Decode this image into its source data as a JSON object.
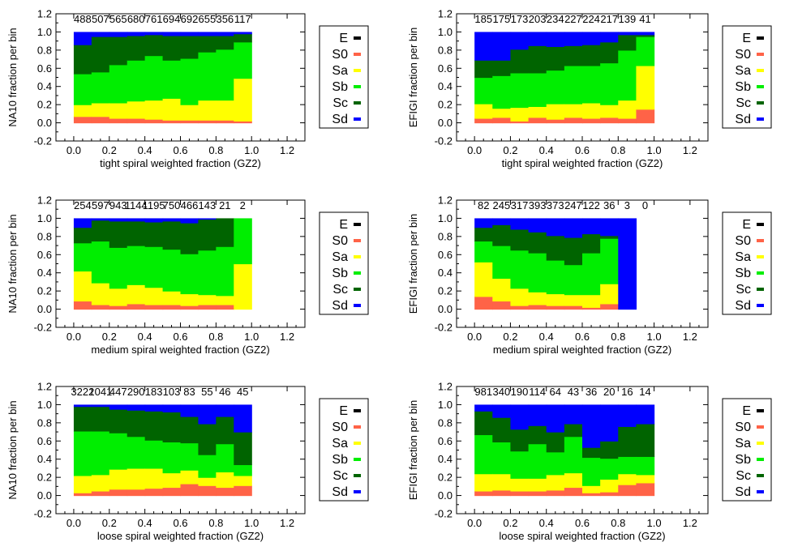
{
  "legend_labels": [
    "E",
    "S0",
    "Sa",
    "Sb",
    "Sc",
    "Sd"
  ],
  "chart_data": [
    {
      "type": "bar",
      "ylabel": "NA10 fraction per bin",
      "xlabel": "tight spiral weighted fraction (GZ2)",
      "counts": [
        "488",
        "507",
        "565",
        "680",
        "761",
        "694",
        "692",
        "655",
        "356",
        "117"
      ],
      "xlim": [
        -0.1,
        1.3
      ],
      "ylim": [
        -0.2,
        1.2
      ],
      "x_ticks": [
        "0.0",
        "0.2",
        "0.4",
        "0.6",
        "0.8",
        "1.0",
        "1.2"
      ],
      "y_ticks": [
        "-0.2",
        "0.0",
        "0.2",
        "0.4",
        "0.6",
        "0.8",
        "1.0",
        "1.2"
      ],
      "bin_edges": [
        0.0,
        0.1,
        0.2,
        0.3,
        0.4,
        0.5,
        0.6,
        0.7,
        0.8,
        0.9,
        1.0
      ],
      "series": [
        {
          "name": "E",
          "color": "#000000",
          "values": [
            0.0,
            0.0,
            0.0,
            0.0,
            0.0,
            0.0,
            0.0,
            0.0,
            0.0,
            0.0
          ]
        },
        {
          "name": "S0",
          "color": "#ff6347",
          "values": [
            0.07,
            0.07,
            0.05,
            0.05,
            0.04,
            0.03,
            0.03,
            0.03,
            0.03,
            0.02
          ]
        },
        {
          "name": "Sa",
          "color": "#ffff00",
          "values": [
            0.13,
            0.15,
            0.17,
            0.19,
            0.21,
            0.24,
            0.17,
            0.22,
            0.22,
            0.47
          ]
        },
        {
          "name": "Sb",
          "color": "#00ee00",
          "values": [
            0.34,
            0.34,
            0.42,
            0.45,
            0.49,
            0.42,
            0.51,
            0.53,
            0.56,
            0.4
          ]
        },
        {
          "name": "Sc",
          "color": "#006400",
          "values": [
            0.32,
            0.39,
            0.31,
            0.27,
            0.23,
            0.27,
            0.25,
            0.18,
            0.15,
            0.09
          ]
        },
        {
          "name": "Sd",
          "color": "#0000ff",
          "values": [
            0.14,
            0.05,
            0.05,
            0.04,
            0.03,
            0.04,
            0.04,
            0.04,
            0.04,
            0.02
          ]
        }
      ]
    },
    {
      "type": "bar",
      "ylabel": "EFIGI fraction per bin",
      "xlabel": "tight spiral weighted fraction (GZ2)",
      "counts": [
        "185",
        "175",
        "173",
        "203",
        "234",
        "227",
        "224",
        "217",
        "139",
        "41"
      ],
      "xlim": [
        -0.1,
        1.3
      ],
      "ylim": [
        -0.2,
        1.2
      ],
      "x_ticks": [
        "0.0",
        "0.2",
        "0.4",
        "0.6",
        "0.8",
        "1.0",
        "1.2"
      ],
      "y_ticks": [
        "-0.2",
        "0.0",
        "0.2",
        "0.4",
        "0.6",
        "0.8",
        "1.0",
        "1.2"
      ],
      "bin_edges": [
        0.0,
        0.1,
        0.2,
        0.3,
        0.4,
        0.5,
        0.6,
        0.7,
        0.8,
        0.9,
        1.0
      ],
      "series": [
        {
          "name": "E",
          "color": "#000000",
          "values": [
            0.0,
            0.0,
            0.0,
            0.0,
            0.0,
            0.0,
            0.0,
            0.0,
            0.0,
            0.0
          ]
        },
        {
          "name": "S0",
          "color": "#ff6347",
          "values": [
            0.05,
            0.06,
            0.02,
            0.06,
            0.04,
            0.06,
            0.05,
            0.06,
            0.05,
            0.15
          ]
        },
        {
          "name": "Sa",
          "color": "#ffff00",
          "values": [
            0.16,
            0.1,
            0.15,
            0.12,
            0.17,
            0.15,
            0.17,
            0.14,
            0.2,
            0.48
          ]
        },
        {
          "name": "Sb",
          "color": "#00ee00",
          "values": [
            0.29,
            0.36,
            0.38,
            0.37,
            0.37,
            0.42,
            0.41,
            0.46,
            0.55,
            0.32
          ]
        },
        {
          "name": "Sc",
          "color": "#006400",
          "values": [
            0.19,
            0.17,
            0.26,
            0.3,
            0.26,
            0.22,
            0.23,
            0.23,
            0.17,
            0.02
          ]
        },
        {
          "name": "Sd",
          "color": "#0000ff",
          "values": [
            0.31,
            0.31,
            0.19,
            0.15,
            0.16,
            0.15,
            0.14,
            0.11,
            0.03,
            0.03
          ]
        }
      ]
    },
    {
      "type": "bar",
      "ylabel": "NA10 fraction per bin",
      "xlabel": "medium spiral weighted fraction (GZ2)",
      "counts": [
        "254",
        "597",
        "943",
        "1144",
        "1195",
        "750",
        "466",
        "143",
        "21",
        "2"
      ],
      "xlim": [
        -0.1,
        1.3
      ],
      "ylim": [
        -0.2,
        1.2
      ],
      "x_ticks": [
        "0.0",
        "0.2",
        "0.4",
        "0.6",
        "0.8",
        "1.0",
        "1.2"
      ],
      "y_ticks": [
        "-0.2",
        "0.0",
        "0.2",
        "0.4",
        "0.6",
        "0.8",
        "1.0",
        "1.2"
      ],
      "bin_edges": [
        0.0,
        0.1,
        0.2,
        0.3,
        0.4,
        0.5,
        0.6,
        0.7,
        0.8,
        0.9,
        1.0
      ],
      "series": [
        {
          "name": "E",
          "color": "#000000",
          "values": [
            0.0,
            0.0,
            0.0,
            0.0,
            0.0,
            0.0,
            0.0,
            0.0,
            0.0,
            0.0
          ]
        },
        {
          "name": "S0",
          "color": "#ff6347",
          "values": [
            0.09,
            0.05,
            0.04,
            0.06,
            0.05,
            0.05,
            0.04,
            0.05,
            0.05,
            0.0
          ]
        },
        {
          "name": "Sa",
          "color": "#ffff00",
          "values": [
            0.33,
            0.24,
            0.19,
            0.21,
            0.19,
            0.15,
            0.13,
            0.11,
            0.1,
            0.5
          ]
        },
        {
          "name": "Sb",
          "color": "#00ee00",
          "values": [
            0.31,
            0.46,
            0.45,
            0.43,
            0.45,
            0.46,
            0.44,
            0.49,
            0.54,
            0.5
          ]
        },
        {
          "name": "Sc",
          "color": "#006400",
          "values": [
            0.17,
            0.23,
            0.29,
            0.27,
            0.27,
            0.31,
            0.34,
            0.34,
            0.31,
            0.0
          ]
        },
        {
          "name": "Sd",
          "color": "#0000ff",
          "values": [
            0.1,
            0.02,
            0.03,
            0.03,
            0.04,
            0.03,
            0.05,
            0.01,
            0.0,
            0.0
          ]
        }
      ]
    },
    {
      "type": "bar",
      "ylabel": "EFIGI fraction per bin",
      "xlabel": "medium spiral weighted fraction (GZ2)",
      "counts": [
        "82",
        "245",
        "317",
        "393",
        "373",
        "247",
        "122",
        "36",
        "3",
        "0"
      ],
      "xlim": [
        -0.1,
        1.3
      ],
      "ylim": [
        -0.2,
        1.2
      ],
      "x_ticks": [
        "0.0",
        "0.2",
        "0.4",
        "0.6",
        "0.8",
        "1.0",
        "1.2"
      ],
      "y_ticks": [
        "-0.2",
        "0.0",
        "0.2",
        "0.4",
        "0.6",
        "0.8",
        "1.0",
        "1.2"
      ],
      "bin_edges": [
        0.0,
        0.1,
        0.2,
        0.3,
        0.4,
        0.5,
        0.6,
        0.7,
        0.8,
        0.9,
        1.0
      ],
      "series": [
        {
          "name": "E",
          "color": "#000000",
          "values": [
            0.0,
            0.0,
            0.0,
            0.0,
            0.0,
            0.0,
            0.0,
            0.0,
            0.0,
            0.0
          ]
        },
        {
          "name": "S0",
          "color": "#ff6347",
          "values": [
            0.14,
            0.09,
            0.04,
            0.05,
            0.04,
            0.04,
            0.02,
            0.06,
            0.0,
            0.0
          ]
        },
        {
          "name": "Sa",
          "color": "#ffff00",
          "values": [
            0.38,
            0.25,
            0.19,
            0.14,
            0.13,
            0.12,
            0.14,
            0.22,
            0.0,
            0.0
          ]
        },
        {
          "name": "Sb",
          "color": "#00ee00",
          "values": [
            0.23,
            0.36,
            0.42,
            0.43,
            0.37,
            0.33,
            0.46,
            0.5,
            0.0,
            0.0
          ]
        },
        {
          "name": "Sc",
          "color": "#006400",
          "values": [
            0.15,
            0.23,
            0.23,
            0.23,
            0.27,
            0.3,
            0.21,
            0.03,
            0.0,
            0.0
          ]
        },
        {
          "name": "Sd",
          "color": "#0000ff",
          "values": [
            0.1,
            0.07,
            0.12,
            0.15,
            0.19,
            0.21,
            0.17,
            0.19,
            1.0,
            0.0
          ]
        }
      ]
    },
    {
      "type": "bar",
      "ylabel": "NA10 fraction per bin",
      "xlabel": "loose spiral weighted fraction (GZ2)",
      "counts": [
        "3222",
        "1041",
        "447",
        "290",
        "183",
        "103",
        "83",
        "55",
        "46",
        "45"
      ],
      "xlim": [
        -0.1,
        1.3
      ],
      "ylim": [
        -0.2,
        1.2
      ],
      "x_ticks": [
        "0.0",
        "0.2",
        "0.4",
        "0.6",
        "0.8",
        "1.0",
        "1.2"
      ],
      "y_ticks": [
        "-0.2",
        "0.0",
        "0.2",
        "0.4",
        "0.6",
        "0.8",
        "1.0",
        "1.2"
      ],
      "bin_edges": [
        0.0,
        0.1,
        0.2,
        0.3,
        0.4,
        0.5,
        0.6,
        0.7,
        0.8,
        0.9,
        1.0
      ],
      "series": [
        {
          "name": "E",
          "color": "#000000",
          "values": [
            0.0,
            0.0,
            0.0,
            0.0,
            0.0,
            0.0,
            0.0,
            0.0,
            0.0,
            0.0
          ]
        },
        {
          "name": "S0",
          "color": "#ff6347",
          "values": [
            0.03,
            0.05,
            0.07,
            0.07,
            0.08,
            0.09,
            0.13,
            0.11,
            0.09,
            0.11
          ]
        },
        {
          "name": "Sa",
          "color": "#ffff00",
          "values": [
            0.19,
            0.18,
            0.22,
            0.23,
            0.22,
            0.16,
            0.15,
            0.09,
            0.17,
            0.11
          ]
        },
        {
          "name": "Sb",
          "color": "#00ee00",
          "values": [
            0.49,
            0.48,
            0.4,
            0.35,
            0.31,
            0.34,
            0.3,
            0.25,
            0.31,
            0.12
          ]
        },
        {
          "name": "Sc",
          "color": "#006400",
          "values": [
            0.27,
            0.27,
            0.26,
            0.29,
            0.32,
            0.33,
            0.29,
            0.34,
            0.3,
            0.36
          ]
        },
        {
          "name": "Sd",
          "color": "#0000ff",
          "values": [
            0.02,
            0.02,
            0.05,
            0.06,
            0.07,
            0.08,
            0.13,
            0.21,
            0.13,
            0.3
          ]
        }
      ]
    },
    {
      "type": "bar",
      "ylabel": "EFIGI fraction per bin",
      "xlabel": "loose spiral weighted fraction (GZ2)",
      "counts": [
        "981",
        "340",
        "190",
        "114",
        "64",
        "43",
        "36",
        "20",
        "16",
        "14"
      ],
      "xlim": [
        -0.1,
        1.3
      ],
      "ylim": [
        -0.2,
        1.2
      ],
      "x_ticks": [
        "0.0",
        "0.2",
        "0.4",
        "0.6",
        "0.8",
        "1.0",
        "1.2"
      ],
      "y_ticks": [
        "-0.2",
        "0.0",
        "0.2",
        "0.4",
        "0.6",
        "0.8",
        "1.0",
        "1.2"
      ],
      "bin_edges": [
        0.0,
        0.1,
        0.2,
        0.3,
        0.4,
        0.5,
        0.6,
        0.7,
        0.8,
        0.9,
        1.0
      ],
      "series": [
        {
          "name": "E",
          "color": "#000000",
          "values": [
            0.0,
            0.0,
            0.0,
            0.0,
            0.0,
            0.0,
            0.0,
            0.0,
            0.0,
            0.0
          ]
        },
        {
          "name": "S0",
          "color": "#ff6347",
          "values": [
            0.05,
            0.06,
            0.05,
            0.05,
            0.06,
            0.09,
            0.03,
            0.04,
            0.12,
            0.14
          ]
        },
        {
          "name": "Sa",
          "color": "#ffff00",
          "values": [
            0.19,
            0.18,
            0.14,
            0.14,
            0.17,
            0.16,
            0.08,
            0.14,
            0.12,
            0.09
          ]
        },
        {
          "name": "Sb",
          "color": "#00ee00",
          "values": [
            0.43,
            0.35,
            0.3,
            0.38,
            0.25,
            0.4,
            0.31,
            0.23,
            0.19,
            0.2
          ]
        },
        {
          "name": "Sc",
          "color": "#006400",
          "values": [
            0.26,
            0.27,
            0.24,
            0.2,
            0.22,
            0.14,
            0.11,
            0.19,
            0.33,
            0.36
          ]
        },
        {
          "name": "Sd",
          "color": "#0000ff",
          "values": [
            0.07,
            0.14,
            0.27,
            0.23,
            0.3,
            0.21,
            0.47,
            0.4,
            0.24,
            0.21
          ]
        }
      ]
    }
  ]
}
